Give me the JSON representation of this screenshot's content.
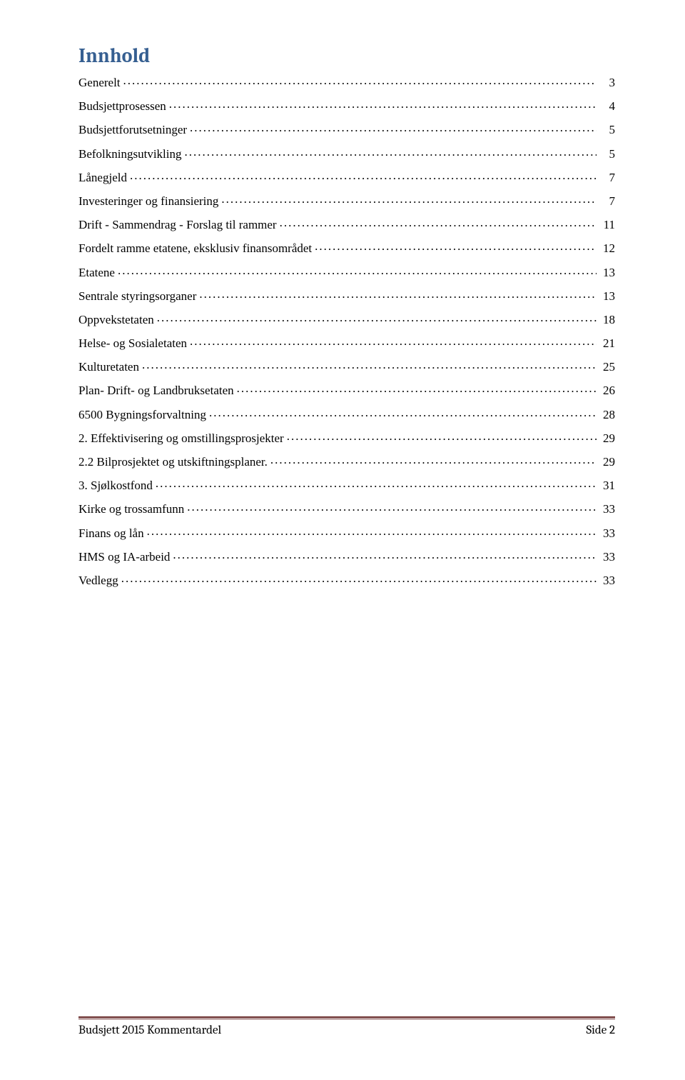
{
  "toc": {
    "title": "Innhold",
    "title_color": "#365f91",
    "title_fontsize": 28,
    "entry_fontsize": 17,
    "entry_color": "#000000",
    "entries": [
      {
        "label": "Generelt",
        "page": "3"
      },
      {
        "label": "Budsjettprosessen",
        "page": "4"
      },
      {
        "label": "Budsjettforutsetninger",
        "page": "5"
      },
      {
        "label": "Befolkningsutvikling",
        "page": "5"
      },
      {
        "label": "Lånegjeld",
        "page": "7"
      },
      {
        "label": "Investeringer og finansiering",
        "page": "7"
      },
      {
        "label": "Drift - Sammendrag - Forslag til rammer",
        "page": "11"
      },
      {
        "label": "Fordelt ramme etatene, eksklusiv finansområdet",
        "page": "12"
      },
      {
        "label": "Etatene",
        "page": "13"
      },
      {
        "label": "Sentrale styringsorganer",
        "page": "13"
      },
      {
        "label": "Oppvekstetaten",
        "page": "18"
      },
      {
        "label": "Helse- og Sosialetaten",
        "page": "21"
      },
      {
        "label": "Kulturetaten",
        "page": "25"
      },
      {
        "label": "Plan- Drift- og Landbruksetaten",
        "page": "26"
      },
      {
        "label": "6500 Bygningsforvaltning",
        "page": "28"
      },
      {
        "label": "2. Effektivisering og omstillingsprosjekter",
        "page": "29"
      },
      {
        "label": "2.2 Bilprosjektet og utskiftningsplaner.",
        "page": "29"
      },
      {
        "label": "3. Sjølkostfond",
        "page": "31"
      },
      {
        "label": "Kirke og trossamfunn",
        "page": "33"
      },
      {
        "label": "Finans og lån",
        "page": "33"
      },
      {
        "label": "HMS og IA-arbeid",
        "page": "33"
      },
      {
        "label": "Vedlegg",
        "page": "33"
      }
    ]
  },
  "footer": {
    "rule_color": "#622423",
    "left": "Budsjett 2015 Kommentardel",
    "right": "Side 2"
  }
}
